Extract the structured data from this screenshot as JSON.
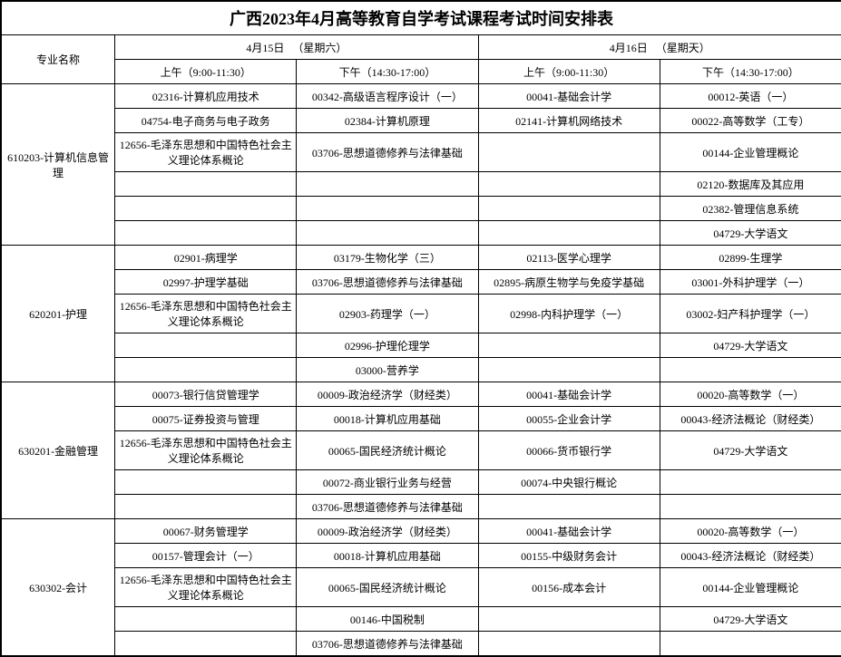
{
  "title": "广西2023年4月高等教育自学考试课程考试时间安排表",
  "header": {
    "major_col": "专业名称",
    "day1_label": "4月15日",
    "day1_weekday": "（星期六）",
    "day2_label": "4月16日",
    "day2_weekday": "（星期天）",
    "slot_am": "上午（9:00-11:30）",
    "slot_pm": "下午（14:30-17:00）"
  },
  "layout": {
    "title_fontsize": 18,
    "body_fontsize": 12,
    "border_color": "#000000",
    "background_color": "#ffffff"
  },
  "majors": [
    {
      "code_name": "610203-计算机信息管理",
      "rows": [
        [
          "02316-计算机应用技术",
          "00342-高级语言程序设计（一）",
          "00041-基础会计学",
          "00012-英语（一）"
        ],
        [
          "04754-电子商务与电子政务",
          "02384-计算机原理",
          "02141-计算机网络技术",
          "00022-高等数学（工专）"
        ],
        [
          "12656-毛泽东思想和中国特色社会主义理论体系概论",
          "03706-思想道德修养与法律基础",
          "",
          "00144-企业管理概论"
        ],
        [
          "",
          "",
          "",
          "02120-数据库及其应用"
        ],
        [
          "",
          "",
          "",
          "02382-管理信息系统"
        ],
        [
          "",
          "",
          "",
          "04729-大学语文"
        ]
      ]
    },
    {
      "code_name": "620201-护理",
      "rows": [
        [
          "02901-病理学",
          "03179-生物化学（三）",
          "02113-医学心理学",
          "02899-生理学"
        ],
        [
          "02997-护理学基础",
          "03706-思想道德修养与法律基础",
          "02895-病原生物学与免疫学基础",
          "03001-外科护理学（一）"
        ],
        [
          "12656-毛泽东思想和中国特色社会主义理论体系概论",
          "02903-药理学（一）",
          "02998-内科护理学（一）",
          "03002-妇产科护理学（一）"
        ],
        [
          "",
          "02996-护理伦理学",
          "",
          "04729-大学语文"
        ],
        [
          "",
          "03000-营养学",
          "",
          ""
        ]
      ]
    },
    {
      "code_name": "630201-金融管理",
      "rows": [
        [
          "00073-银行信贷管理学",
          "00009-政治经济学（财经类）",
          "00041-基础会计学",
          "00020-高等数学（一）"
        ],
        [
          "00075-证券投资与管理",
          "00018-计算机应用基础",
          "00055-企业会计学",
          "00043-经济法概论（财经类）"
        ],
        [
          "12656-毛泽东思想和中国特色社会主义理论体系概论",
          "00065-国民经济统计概论",
          "00066-货币银行学",
          "04729-大学语文"
        ],
        [
          "",
          "00072-商业银行业务与经营",
          "00074-中央银行概论",
          ""
        ],
        [
          "",
          "03706-思想道德修养与法律基础",
          "",
          ""
        ]
      ]
    },
    {
      "code_name": "630302-会计",
      "rows": [
        [
          "00067-财务管理学",
          "00009-政治经济学（财经类）",
          "00041-基础会计学",
          "00020-高等数学（一）"
        ],
        [
          "00157-管理会计（一）",
          "00018-计算机应用基础",
          "00155-中级财务会计",
          "00043-经济法概论（财经类）"
        ],
        [
          "12656-毛泽东思想和中国特色社会主义理论体系概论",
          "00065-国民经济统计概论",
          "00156-成本会计",
          "00144-企业管理概论"
        ],
        [
          "",
          "00146-中国税制",
          "",
          "04729-大学语文"
        ],
        [
          "",
          "03706-思想道德修养与法律基础",
          "",
          ""
        ]
      ]
    }
  ]
}
